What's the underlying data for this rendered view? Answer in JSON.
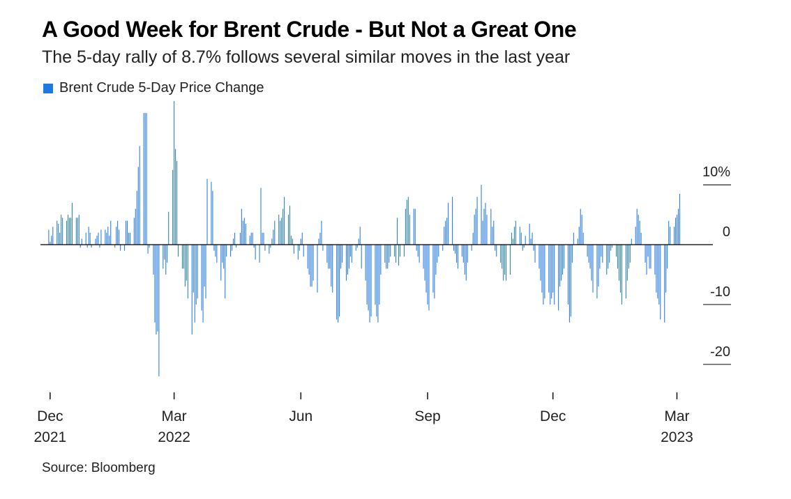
{
  "colors": {
    "bar": "#2e7fdf",
    "legend": "#1f7ae0",
    "axis": "#111111",
    "gridline": "#222222"
  },
  "chart_data": {
    "type": "bar",
    "title": "A Good Week for Brent Crude - But Not a Great One",
    "subtitle": "The 5-day rally of 8.7% follows several similar moves in the last year",
    "source": "Source: Bloomberg",
    "legend": "Brent Crude 5-Day Price Change",
    "legend_position": "top-left",
    "y_axis_side": "right",
    "ylim": [
      -22,
      24
    ],
    "yticks": [
      {
        "value": 10,
        "label": "10%"
      },
      {
        "value": 0,
        "label": "0"
      },
      {
        "value": -10,
        "label": "-10"
      },
      {
        "value": -20,
        "label": "-20"
      }
    ],
    "x_domain": [
      "2021-11-25",
      "2023-03-20"
    ],
    "xticks": [
      {
        "date": "2021-12-01",
        "label": "Dec",
        "year": "2021"
      },
      {
        "date": "2022-03-01",
        "label": "Mar",
        "year": "2022"
      },
      {
        "date": "2022-06-01",
        "label": "Jun",
        "year": ""
      },
      {
        "date": "2022-09-01",
        "label": "Sep",
        "year": ""
      },
      {
        "date": "2022-12-01",
        "label": "Dec",
        "year": ""
      },
      {
        "date": "2023-03-01",
        "label": "Mar",
        "year": "2023"
      }
    ],
    "series": [
      {
        "start_date": "2021-11-30",
        "frequency": "weekday",
        "values": [
          2.5,
          0.5,
          1.5,
          3,
          4,
          3.5,
          2,
          5,
          4.5,
          4,
          5,
          4.5,
          4.5,
          7,
          4.5,
          4.5,
          5,
          -0.5,
          1,
          2,
          -0.5,
          3,
          2,
          -0.5,
          1,
          1.5,
          2,
          -0.5,
          2.5,
          2.5,
          2,
          3,
          1.5,
          4,
          -0.5,
          3,
          4,
          2.5,
          -1,
          -1,
          4,
          4,
          2,
          2,
          4.5,
          6,
          9,
          13,
          16.5,
          22,
          22,
          22,
          -1.5,
          -0.5,
          -5,
          -13,
          -15,
          -14.5,
          -22,
          -4,
          -2.5,
          -5,
          -3,
          5.5,
          12.5,
          24,
          16,
          14,
          -2,
          -4,
          -4,
          -7,
          -6,
          -9,
          -15,
          -8,
          -13,
          -10,
          -9,
          -11,
          -13,
          -7,
          -9,
          11,
          10.5,
          9,
          -1,
          -2,
          -3,
          -6,
          -3,
          -4,
          -9,
          -2,
          -2,
          -1,
          1,
          2,
          -0.5,
          2,
          6,
          4,
          4.5,
          3.5,
          1.5,
          2,
          2,
          -0.5,
          -2.5,
          -3,
          9.5,
          2,
          2,
          -1,
          -1.5,
          -0.5,
          1,
          2.5,
          4,
          5,
          4,
          4.5,
          6,
          8,
          5,
          6.5,
          1.5,
          1,
          -1.5,
          -2.5,
          -1,
          1,
          2,
          -2,
          -4,
          -5,
          -7,
          -7,
          -6,
          -8,
          1,
          2,
          4,
          -1,
          -3,
          -4,
          -4,
          -7,
          -8,
          -12.5,
          -13,
          -12,
          -4,
          -3,
          -6,
          -5,
          -4,
          -2,
          -3,
          -1,
          -0.5,
          1,
          3,
          -4,
          -6,
          -10,
          -11,
          -13,
          -12,
          -10,
          -12,
          -13,
          -10,
          -5,
          -3,
          -4,
          -4,
          -3,
          -2,
          -2,
          -3,
          4.5,
          -3.5,
          -2,
          -2,
          6,
          7.5,
          8,
          5,
          6,
          6,
          -1,
          -2,
          -3,
          -4,
          -6,
          -8,
          -10,
          -11,
          -8,
          -9,
          -5,
          -3,
          -2,
          -1,
          3,
          4,
          4.5,
          7,
          8,
          -1,
          -1.5,
          -3,
          -4,
          -2,
          -3,
          -5,
          -6,
          -3,
          -1,
          2,
          5,
          6,
          8,
          10,
          4,
          6,
          7,
          5,
          6,
          3,
          4,
          -1,
          -2,
          -3,
          -4,
          -6,
          -5,
          -6,
          -5,
          2,
          1,
          3,
          4,
          3,
          2,
          -1,
          -0.5,
          1.5,
          3.5,
          1,
          2,
          -1,
          -3,
          -4,
          -6,
          -8,
          -10,
          -9,
          -8,
          -10,
          -9,
          -8,
          -10,
          -11,
          -7,
          -6,
          -5,
          -4,
          -10,
          -13,
          -12,
          -3,
          2,
          1,
          3,
          6,
          5,
          2,
          -2,
          -3,
          -4,
          -6,
          -8,
          -9,
          -7,
          -4,
          -2,
          -3,
          -5,
          -4,
          -3,
          -1,
          -0.5,
          -2,
          -4,
          -6,
          -8,
          -10,
          -9,
          -6,
          -4,
          -3,
          1,
          3,
          6,
          5,
          4,
          2,
          -3,
          -5,
          -2,
          -4,
          -4,
          -5,
          -8,
          -9,
          -10,
          -12.5,
          -13,
          -8,
          -4,
          4,
          3,
          3,
          4.5,
          5,
          6,
          8.5
        ]
      }
    ]
  }
}
